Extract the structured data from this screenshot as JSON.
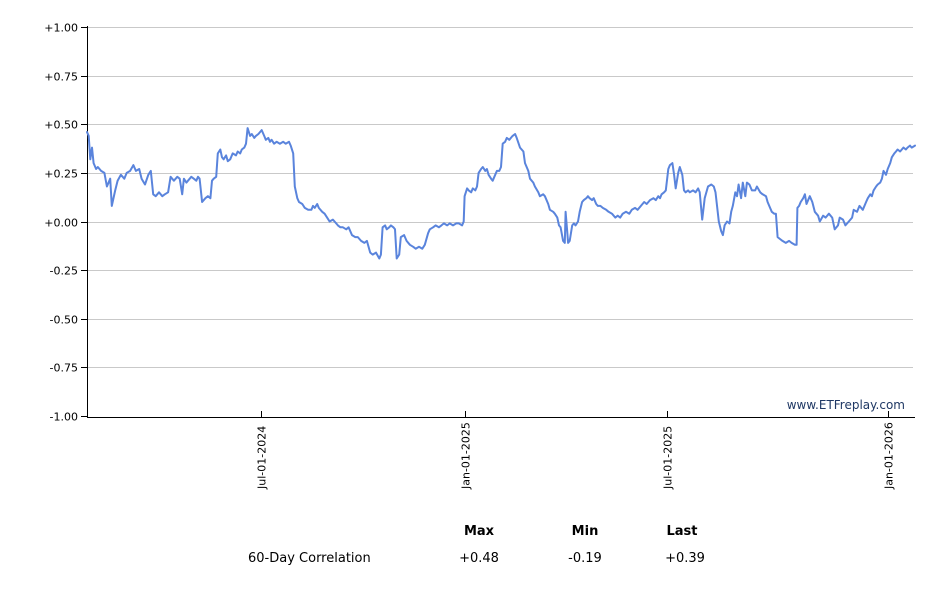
{
  "watermark": "www.ETFreplay.com",
  "stats_table": {
    "headers": [
      "Max",
      "Min",
      "Last"
    ],
    "row_label": "60-Day Correlation",
    "values": [
      "+0.48",
      "-0.19",
      "+0.39"
    ]
  },
  "chart_data": {
    "type": "line",
    "title": "",
    "series_name": "60-Day Correlation",
    "legend_position": "none",
    "grid": "horizontal",
    "ylim": [
      -1,
      1
    ],
    "y_tick_values": [
      1,
      0.75,
      0.5,
      0.25,
      0,
      -0.25,
      -0.5,
      -0.75,
      -1
    ],
    "y_tick_labels": [
      "+1.00",
      "+0.75",
      "+0.50",
      "+0.25",
      "+0.00",
      "-0.25",
      "-0.50",
      "-0.75",
      "-1.00"
    ],
    "x_tick_labels": [
      "Jul-01-2024",
      "Jan-01-2025",
      "Jul-01-2025",
      "Jan-01-2026"
    ],
    "x_tick_pos_permille": [
      210,
      457,
      700,
      967
    ],
    "x_domain_note": "daily values from ~late-Jan-2024 to ~late-Jan-2026",
    "line_color": "#5a84dc",
    "grid_color": "#c9c9c9",
    "axis_color": "#000000",
    "watermark_color": "#1f3864",
    "max": 0.48,
    "min": -0.19,
    "last": 0.39,
    "points": [
      [
        0,
        0.46
      ],
      [
        2,
        0.44
      ],
      [
        4,
        0.32
      ],
      [
        6,
        0.38
      ],
      [
        8,
        0.3
      ],
      [
        11,
        0.27
      ],
      [
        13,
        0.28
      ],
      [
        17,
        0.26
      ],
      [
        21,
        0.25
      ],
      [
        24,
        0.18
      ],
      [
        28,
        0.22
      ],
      [
        30,
        0.08
      ],
      [
        34,
        0.16
      ],
      [
        37,
        0.21
      ],
      [
        41,
        0.24
      ],
      [
        45,
        0.22
      ],
      [
        48,
        0.25
      ],
      [
        52,
        0.26
      ],
      [
        56,
        0.29
      ],
      [
        59,
        0.26
      ],
      [
        63,
        0.27
      ],
      [
        66,
        0.22
      ],
      [
        70,
        0.19
      ],
      [
        74,
        0.24
      ],
      [
        77,
        0.26
      ],
      [
        80,
        0.14
      ],
      [
        83,
        0.13
      ],
      [
        87,
        0.15
      ],
      [
        91,
        0.13
      ],
      [
        94,
        0.14
      ],
      [
        98,
        0.15
      ],
      [
        101,
        0.23
      ],
      [
        105,
        0.21
      ],
      [
        109,
        0.23
      ],
      [
        112,
        0.22
      ],
      [
        115,
        0.14
      ],
      [
        117,
        0.22
      ],
      [
        120,
        0.2
      ],
      [
        122,
        0.21
      ],
      [
        126,
        0.23
      ],
      [
        129,
        0.22
      ],
      [
        132,
        0.21
      ],
      [
        134,
        0.23
      ],
      [
        136,
        0.22
      ],
      [
        139,
        0.1
      ],
      [
        143,
        0.12
      ],
      [
        146,
        0.13
      ],
      [
        149,
        0.12
      ],
      [
        151,
        0.21
      ],
      [
        153,
        0.22
      ],
      [
        156,
        0.23
      ],
      [
        158,
        0.35
      ],
      [
        161,
        0.37
      ],
      [
        163,
        0.33
      ],
      [
        165,
        0.32
      ],
      [
        168,
        0.34
      ],
      [
        170,
        0.31
      ],
      [
        173,
        0.32
      ],
      [
        176,
        0.35
      ],
      [
        180,
        0.34
      ],
      [
        182,
        0.36
      ],
      [
        185,
        0.35
      ],
      [
        187,
        0.37
      ],
      [
        190,
        0.38
      ],
      [
        192,
        0.4
      ],
      [
        194,
        0.48
      ],
      [
        197,
        0.44
      ],
      [
        199,
        0.45
      ],
      [
        202,
        0.43
      ],
      [
        204,
        0.44
      ],
      [
        207,
        0.45
      ],
      [
        209,
        0.46
      ],
      [
        211,
        0.47
      ],
      [
        214,
        0.44
      ],
      [
        216,
        0.42
      ],
      [
        219,
        0.43
      ],
      [
        221,
        0.41
      ],
      [
        223,
        0.42
      ],
      [
        226,
        0.4
      ],
      [
        229,
        0.41
      ],
      [
        233,
        0.4
      ],
      [
        237,
        0.41
      ],
      [
        240,
        0.4
      ],
      [
        244,
        0.41
      ],
      [
        246,
        0.39
      ],
      [
        249,
        0.35
      ],
      [
        251,
        0.18
      ],
      [
        254,
        0.12
      ],
      [
        256,
        0.1
      ],
      [
        260,
        0.09
      ],
      [
        263,
        0.07
      ],
      [
        267,
        0.06
      ],
      [
        271,
        0.06
      ],
      [
        273,
        0.08
      ],
      [
        275,
        0.07
      ],
      [
        278,
        0.09
      ],
      [
        280,
        0.07
      ],
      [
        284,
        0.05
      ],
      [
        287,
        0.04
      ],
      [
        290,
        0.02
      ],
      [
        293,
        0.0
      ],
      [
        297,
        0.01
      ],
      [
        301,
        -0.01
      ],
      [
        303,
        -0.02
      ],
      [
        306,
        -0.03
      ],
      [
        309,
        -0.03
      ],
      [
        313,
        -0.04
      ],
      [
        316,
        -0.03
      ],
      [
        320,
        -0.07
      ],
      [
        324,
        -0.08
      ],
      [
        327,
        -0.08
      ],
      [
        331,
        -0.1
      ],
      [
        335,
        -0.11
      ],
      [
        338,
        -0.1
      ],
      [
        342,
        -0.16
      ],
      [
        345,
        -0.17
      ],
      [
        349,
        -0.16
      ],
      [
        353,
        -0.19
      ],
      [
        355,
        -0.17
      ],
      [
        357,
        -0.03
      ],
      [
        360,
        -0.02
      ],
      [
        362,
        -0.04
      ],
      [
        365,
        -0.03
      ],
      [
        367,
        -0.02
      ],
      [
        370,
        -0.03
      ],
      [
        372,
        -0.04
      ],
      [
        374,
        -0.19
      ],
      [
        377,
        -0.17
      ],
      [
        379,
        -0.08
      ],
      [
        383,
        -0.07
      ],
      [
        386,
        -0.1
      ],
      [
        390,
        -0.12
      ],
      [
        394,
        -0.13
      ],
      [
        397,
        -0.14
      ],
      [
        401,
        -0.13
      ],
      [
        405,
        -0.14
      ],
      [
        408,
        -0.12
      ],
      [
        412,
        -0.06
      ],
      [
        414,
        -0.04
      ],
      [
        418,
        -0.03
      ],
      [
        421,
        -0.02
      ],
      [
        425,
        -0.03
      ],
      [
        428,
        -0.02
      ],
      [
        431,
        -0.01
      ],
      [
        435,
        -0.02
      ],
      [
        438,
        -0.01
      ],
      [
        442,
        -0.02
      ],
      [
        446,
        -0.01
      ],
      [
        449,
        -0.01
      ],
      [
        453,
        -0.02
      ],
      [
        455,
        0.0
      ],
      [
        456,
        0.13
      ],
      [
        459,
        0.17
      ],
      [
        461,
        0.16
      ],
      [
        464,
        0.15
      ],
      [
        466,
        0.17
      ],
      [
        469,
        0.16
      ],
      [
        471,
        0.18
      ],
      [
        473,
        0.25
      ],
      [
        476,
        0.27
      ],
      [
        478,
        0.28
      ],
      [
        481,
        0.26
      ],
      [
        483,
        0.27
      ],
      [
        485,
        0.24
      ],
      [
        488,
        0.22
      ],
      [
        490,
        0.21
      ],
      [
        493,
        0.24
      ],
      [
        495,
        0.26
      ],
      [
        498,
        0.26
      ],
      [
        500,
        0.28
      ],
      [
        502,
        0.4
      ],
      [
        505,
        0.41
      ],
      [
        507,
        0.43
      ],
      [
        510,
        0.42
      ],
      [
        512,
        0.43
      ],
      [
        514,
        0.44
      ],
      [
        517,
        0.45
      ],
      [
        519,
        0.43
      ],
      [
        523,
        0.38
      ],
      [
        527,
        0.36
      ],
      [
        529,
        0.3
      ],
      [
        533,
        0.26
      ],
      [
        535,
        0.22
      ],
      [
        539,
        0.2
      ],
      [
        541,
        0.18
      ],
      [
        545,
        0.15
      ],
      [
        547,
        0.13
      ],
      [
        551,
        0.14
      ],
      [
        553,
        0.13
      ],
      [
        557,
        0.09
      ],
      [
        559,
        0.06
      ],
      [
        563,
        0.05
      ],
      [
        565,
        0.04
      ],
      [
        568,
        0.02
      ],
      [
        570,
        -0.02
      ],
      [
        572,
        -0.03
      ],
      [
        575,
        -0.1
      ],
      [
        577,
        -0.11
      ],
      [
        578,
        0.05
      ],
      [
        580,
        -0.05
      ],
      [
        581,
        -0.11
      ],
      [
        583,
        -0.1
      ],
      [
        586,
        -0.02
      ],
      [
        588,
        -0.01
      ],
      [
        590,
        -0.02
      ],
      [
        593,
        0.0
      ],
      [
        595,
        0.05
      ],
      [
        598,
        0.1
      ],
      [
        600,
        0.11
      ],
      [
        603,
        0.12
      ],
      [
        605,
        0.13
      ],
      [
        607,
        0.12
      ],
      [
        610,
        0.11
      ],
      [
        612,
        0.12
      ],
      [
        615,
        0.09
      ],
      [
        617,
        0.08
      ],
      [
        620,
        0.08
      ],
      [
        623,
        0.07
      ],
      [
        627,
        0.06
      ],
      [
        630,
        0.05
      ],
      [
        634,
        0.04
      ],
      [
        638,
        0.02
      ],
      [
        641,
        0.03
      ],
      [
        644,
        0.02
      ],
      [
        647,
        0.04
      ],
      [
        651,
        0.05
      ],
      [
        655,
        0.04
      ],
      [
        658,
        0.06
      ],
      [
        662,
        0.07
      ],
      [
        665,
        0.06
      ],
      [
        669,
        0.08
      ],
      [
        673,
        0.1
      ],
      [
        676,
        0.09
      ],
      [
        680,
        0.11
      ],
      [
        684,
        0.12
      ],
      [
        687,
        0.11
      ],
      [
        690,
        0.13
      ],
      [
        692,
        0.12
      ],
      [
        694,
        0.14
      ],
      [
        697,
        0.15
      ],
      [
        699,
        0.16
      ],
      [
        702,
        0.27
      ],
      [
        704,
        0.29
      ],
      [
        707,
        0.3
      ],
      [
        709,
        0.24
      ],
      [
        711,
        0.17
      ],
      [
        714,
        0.25
      ],
      [
        716,
        0.28
      ],
      [
        719,
        0.24
      ],
      [
        721,
        0.16
      ],
      [
        723,
        0.15
      ],
      [
        726,
        0.16
      ],
      [
        728,
        0.15
      ],
      [
        732,
        0.16
      ],
      [
        735,
        0.15
      ],
      [
        738,
        0.17
      ],
      [
        740,
        0.15
      ],
      [
        743,
        0.01
      ],
      [
        746,
        0.12
      ],
      [
        750,
        0.18
      ],
      [
        754,
        0.19
      ],
      [
        757,
        0.18
      ],
      [
        759,
        0.15
      ],
      [
        763,
        0.0
      ],
      [
        766,
        -0.05
      ],
      [
        768,
        -0.07
      ],
      [
        770,
        -0.02
      ],
      [
        773,
        0.0
      ],
      [
        776,
        -0.01
      ],
      [
        778,
        0.05
      ],
      [
        780,
        0.08
      ],
      [
        783,
        0.15
      ],
      [
        785,
        0.13
      ],
      [
        787,
        0.19
      ],
      [
        790,
        0.12
      ],
      [
        792,
        0.2
      ],
      [
        795,
        0.13
      ],
      [
        797,
        0.2
      ],
      [
        800,
        0.19
      ],
      [
        803,
        0.16
      ],
      [
        807,
        0.16
      ],
      [
        809,
        0.18
      ],
      [
        813,
        0.15
      ],
      [
        816,
        0.14
      ],
      [
        820,
        0.13
      ],
      [
        822,
        0.1
      ],
      [
        825,
        0.07
      ],
      [
        827,
        0.05
      ],
      [
        830,
        0.04
      ],
      [
        832,
        0.04
      ],
      [
        834,
        -0.08
      ],
      [
        837,
        -0.09
      ],
      [
        840,
        -0.1
      ],
      [
        844,
        -0.11
      ],
      [
        848,
        -0.1
      ],
      [
        851,
        -0.11
      ],
      [
        855,
        -0.12
      ],
      [
        857,
        -0.12
      ],
      [
        858,
        0.07
      ],
      [
        860,
        0.08
      ],
      [
        862,
        0.1
      ],
      [
        865,
        0.12
      ],
      [
        867,
        0.14
      ],
      [
        869,
        0.09
      ],
      [
        873,
        0.13
      ],
      [
        876,
        0.1
      ],
      [
        879,
        0.05
      ],
      [
        883,
        0.03
      ],
      [
        885,
        0.0
      ],
      [
        889,
        0.03
      ],
      [
        892,
        0.02
      ],
      [
        896,
        0.04
      ],
      [
        900,
        0.02
      ],
      [
        903,
        -0.04
      ],
      [
        907,
        -0.02
      ],
      [
        909,
        0.02
      ],
      [
        913,
        0.01
      ],
      [
        916,
        -0.02
      ],
      [
        920,
        0.0
      ],
      [
        924,
        0.02
      ],
      [
        926,
        0.06
      ],
      [
        930,
        0.05
      ],
      [
        933,
        0.08
      ],
      [
        937,
        0.06
      ],
      [
        941,
        0.1
      ],
      [
        943,
        0.12
      ],
      [
        946,
        0.14
      ],
      [
        948,
        0.13
      ],
      [
        950,
        0.16
      ],
      [
        953,
        0.18
      ],
      [
        955,
        0.19
      ],
      [
        958,
        0.2
      ],
      [
        960,
        0.22
      ],
      [
        962,
        0.26
      ],
      [
        965,
        0.24
      ],
      [
        967,
        0.27
      ],
      [
        970,
        0.3
      ],
      [
        972,
        0.33
      ],
      [
        975,
        0.35
      ],
      [
        977,
        0.36
      ],
      [
        979,
        0.37
      ],
      [
        982,
        0.36
      ],
      [
        984,
        0.37
      ],
      [
        986,
        0.38
      ],
      [
        989,
        0.37
      ],
      [
        991,
        0.38
      ],
      [
        994,
        0.39
      ],
      [
        996,
        0.38
      ],
      [
        1000,
        0.39
      ]
    ]
  }
}
